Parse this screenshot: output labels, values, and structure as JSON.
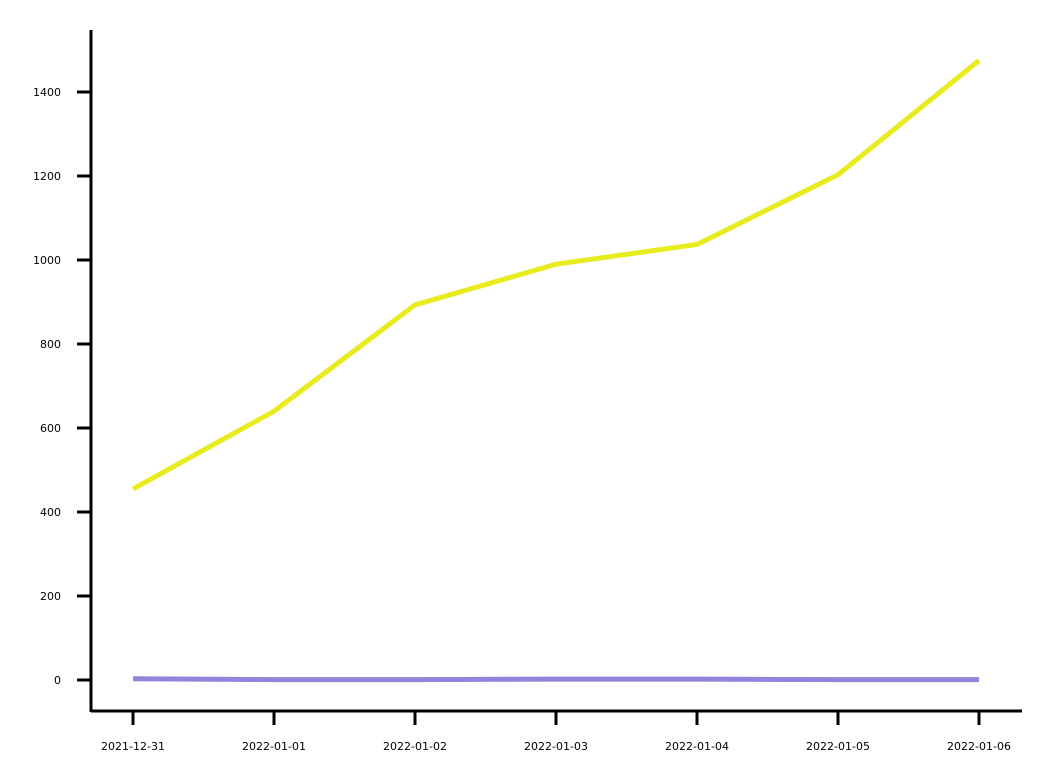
{
  "chart_data": {
    "type": "line",
    "title": "",
    "xlabel": "",
    "ylabel": "",
    "x": [
      "2021-12-31",
      "2022-01-01",
      "2022-01-02",
      "2022-01-03",
      "2022-01-04",
      "2022-01-05",
      "2022-01-06"
    ],
    "ylim": [
      -70,
      1545
    ],
    "y_ticks": [
      0,
      200,
      400,
      600,
      800,
      1000,
      1200,
      1400
    ],
    "grid": false,
    "legend": "none",
    "series": [
      {
        "color": "#e8ec1f",
        "values": [
          455,
          640,
          893,
          990,
          1037,
          1203,
          1475
        ]
      },
      {
        "color": "#9085db",
        "values": [
          3,
          1,
          1,
          2,
          2,
          1,
          1
        ]
      }
    ]
  }
}
